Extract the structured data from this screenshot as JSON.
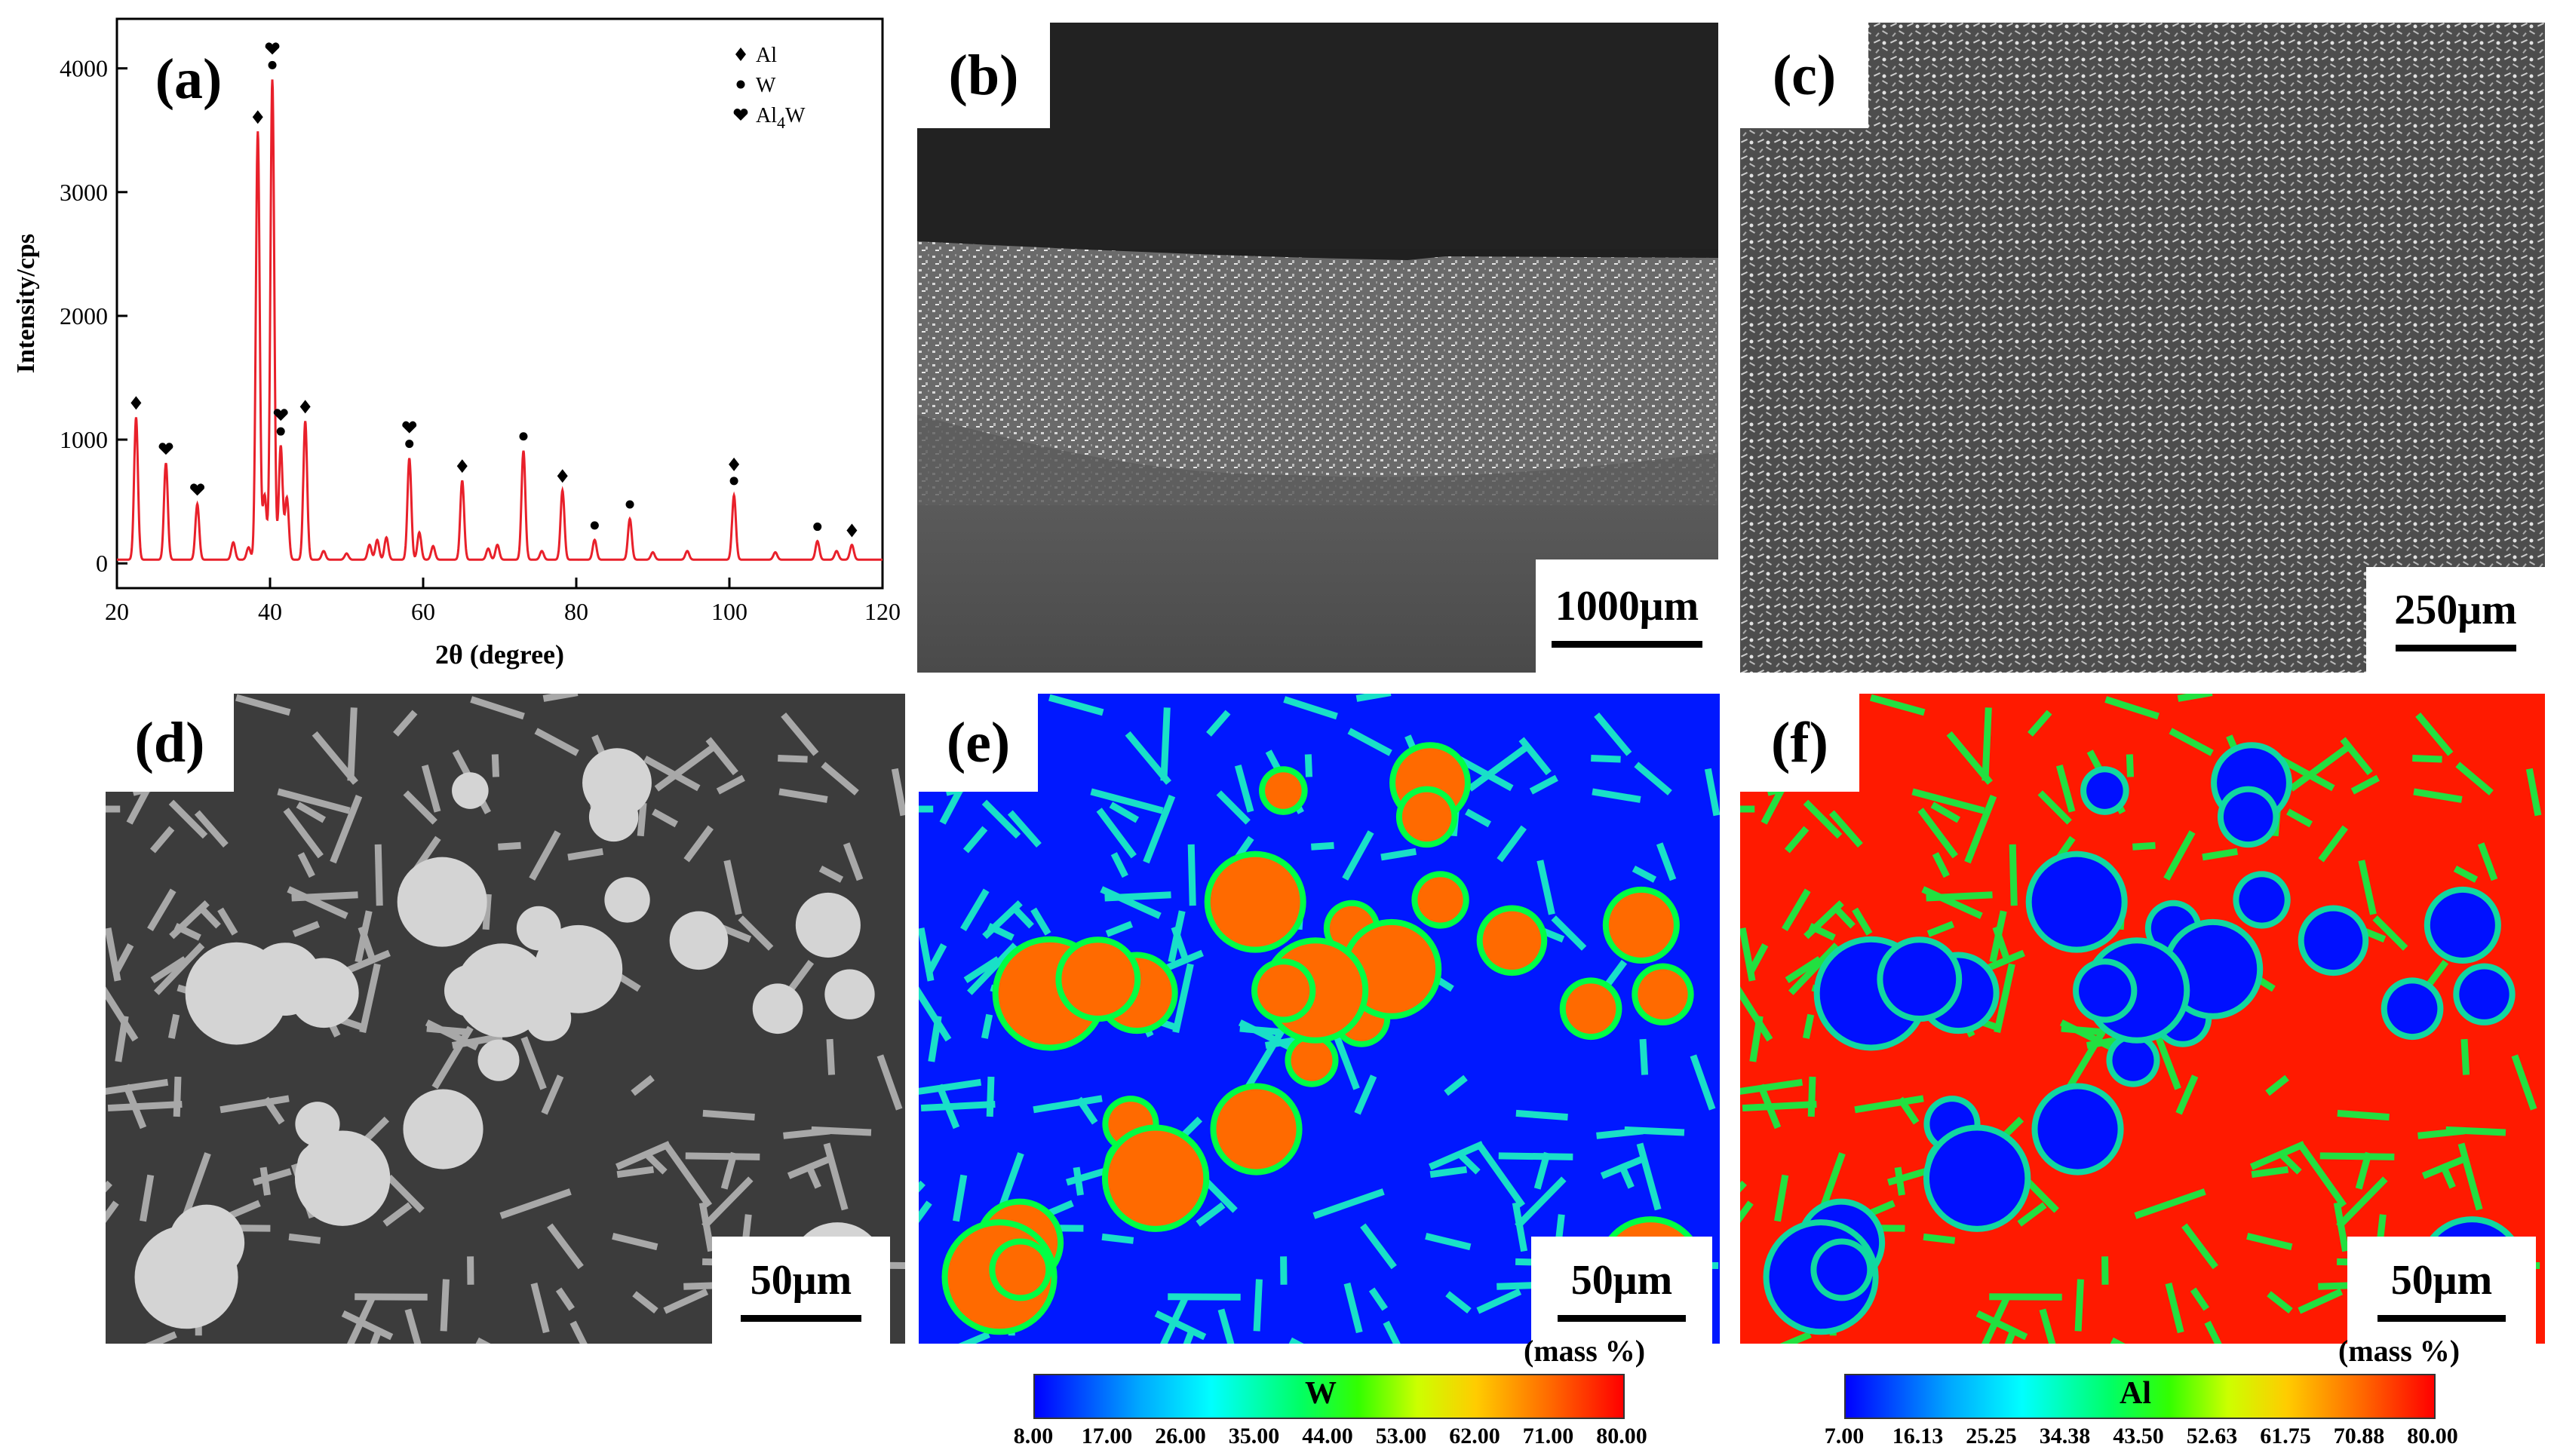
{
  "panels": {
    "a": {
      "label": "(a)"
    },
    "b": {
      "label": "(b)",
      "scale": "1000μm"
    },
    "c": {
      "label": "(c)",
      "scale": "250μm"
    },
    "d": {
      "label": "(d)",
      "scale": "50μm"
    },
    "e": {
      "label": "(e)",
      "scale": "50μm",
      "unit": "(mass %)"
    },
    "f": {
      "label": "(f)",
      "scale": "50μm",
      "unit": "(mass %)"
    }
  },
  "colorbar_w": {
    "element": "W",
    "ticks": [
      "8.00",
      "17.00",
      "26.00",
      "35.00",
      "44.00",
      "53.00",
      "62.00",
      "71.00",
      "80.00"
    ]
  },
  "colorbar_al": {
    "element": "Al",
    "ticks": [
      "7.00",
      "16.13",
      "25.25",
      "34.38",
      "43.50",
      "52.63",
      "61.75",
      "70.88",
      "80.00"
    ]
  },
  "colors": {
    "xrd_line": "#e8202a",
    "map_low": "#0000ff",
    "map_high": "#ff0000",
    "sem_dark": "#3a3a3a",
    "sem_light": "#cfcfcf"
  },
  "chart_data": {
    "type": "line",
    "xlabel": "2θ (degree)",
    "ylabel": "Intensity/cps",
    "xlim": [
      20,
      120
    ],
    "ylim": [
      -200,
      4400
    ],
    "xticks": [
      20,
      40,
      60,
      80,
      100,
      120
    ],
    "yticks": [
      0,
      1000,
      2000,
      3000,
      4000
    ],
    "legend": {
      "placement": "top-right",
      "entries": [
        {
          "symbol": "diamond",
          "name": "Al"
        },
        {
          "symbol": "dot",
          "name": "W"
        },
        {
          "symbol": "heart",
          "name": "Al4W"
        }
      ]
    },
    "peaks": [
      {
        "x": 22.5,
        "y": 1150,
        "markers": [
          "diamond"
        ]
      },
      {
        "x": 26.4,
        "y": 780,
        "markers": [
          "heart"
        ]
      },
      {
        "x": 30.5,
        "y": 450,
        "markers": [
          "heart"
        ]
      },
      {
        "x": 38.4,
        "y": 3460,
        "markers": [
          "diamond"
        ]
      },
      {
        "x": 39.3,
        "y": 520,
        "markers": []
      },
      {
        "x": 40.3,
        "y": 3880,
        "markers": [
          "heart",
          "dot"
        ]
      },
      {
        "x": 41.4,
        "y": 920,
        "markers": [
          "heart",
          "dot"
        ]
      },
      {
        "x": 42.2,
        "y": 500,
        "markers": []
      },
      {
        "x": 44.6,
        "y": 1120,
        "markers": [
          "diamond"
        ]
      },
      {
        "x": 58.2,
        "y": 820,
        "markers": [
          "heart",
          "dot"
        ]
      },
      {
        "x": 65.1,
        "y": 640,
        "markers": [
          "diamond"
        ]
      },
      {
        "x": 73.1,
        "y": 880,
        "markers": [
          "dot"
        ]
      },
      {
        "x": 78.2,
        "y": 560,
        "markers": [
          "diamond"
        ]
      },
      {
        "x": 82.4,
        "y": 160,
        "markers": [
          "dot"
        ]
      },
      {
        "x": 87.0,
        "y": 330,
        "markers": [
          "dot"
        ]
      },
      {
        "x": 100.6,
        "y": 520,
        "markers": [
          "diamond",
          "dot"
        ]
      },
      {
        "x": 111.5,
        "y": 150,
        "markers": [
          "dot"
        ]
      },
      {
        "x": 116.0,
        "y": 120,
        "markers": [
          "diamond"
        ]
      }
    ]
  }
}
